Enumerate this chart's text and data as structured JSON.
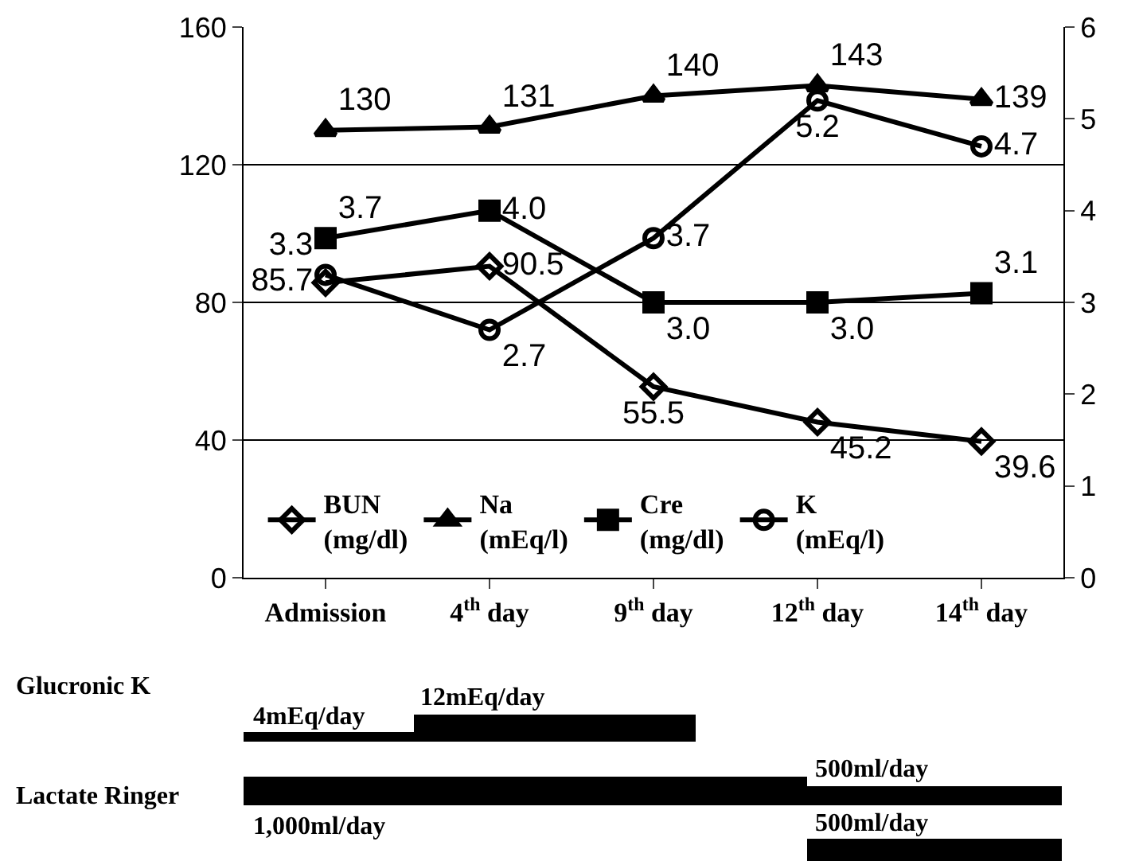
{
  "chart_data": {
    "type": "line",
    "categories": [
      "Admission",
      "4$^{th}$ day",
      "9$^{th}$ day",
      "12$^{th}$ day",
      "14$^{th}$ day"
    ],
    "series": [
      {
        "name": "BUN\n(mg/dl)",
        "color": "#000000",
        "marker": "diamond",
        "values": [
          85.7,
          90.5,
          55.5,
          45.2,
          39.6
        ]
      },
      {
        "name": "Na\n(mEq/l)",
        "color": "#000000",
        "marker": "triangle",
        "values": [
          130,
          131,
          140,
          143,
          139
        ]
      },
      {
        "name": "Cre\n(mg/dl)",
        "color": "#000000",
        "marker": "square",
        "axis": "y2",
        "values": [
          3.7,
          4.0,
          3.0,
          3.0,
          3.1
        ],
        "value_labels": [
          "3.7",
          "4.0",
          "3.0",
          "3.0",
          "3.1"
        ]
      },
      {
        "name": "K\n(mEq/l)",
        "color": "#000000",
        "marker": "circle",
        "axis": "y2",
        "values": [
          3.3,
          2.7,
          3.7,
          5.2,
          4.7
        ]
      }
    ],
    "ylim": [
      0,
      160
    ],
    "yticks": [
      0,
      40,
      80,
      120,
      160
    ],
    "y2lim": [
      0,
      6
    ],
    "y2ticks": [
      0,
      1,
      2,
      3,
      4,
      5,
      6
    ],
    "grid": "y",
    "legend": "bottom left",
    "data_labels": true,
    "line_style": "solid",
    "annotations": [
      "Glucronic K",
      "Lactate Ringer",
      "4mEq/day",
      "12mEq/day",
      "1,000ml/day",
      "500ml/day",
      "500ml/day"
    ]
  }
}
